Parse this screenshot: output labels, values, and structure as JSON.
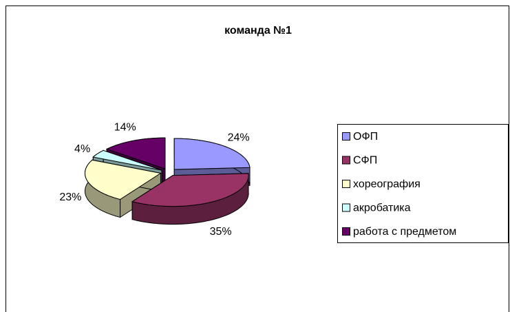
{
  "chart_data": {
    "type": "pie",
    "title": "команда №1",
    "categories": [
      "ОФП",
      "СФП",
      "хореография",
      "акробатика",
      "работа с предметом"
    ],
    "values": [
      24,
      35,
      23,
      4,
      14
    ],
    "value_labels": [
      "24%",
      "35%",
      "23%",
      "4%",
      "14%"
    ],
    "colors": [
      "#9999ff",
      "#993366",
      "#ffffcc",
      "#ccffff",
      "#660066"
    ],
    "legend": "right"
  }
}
